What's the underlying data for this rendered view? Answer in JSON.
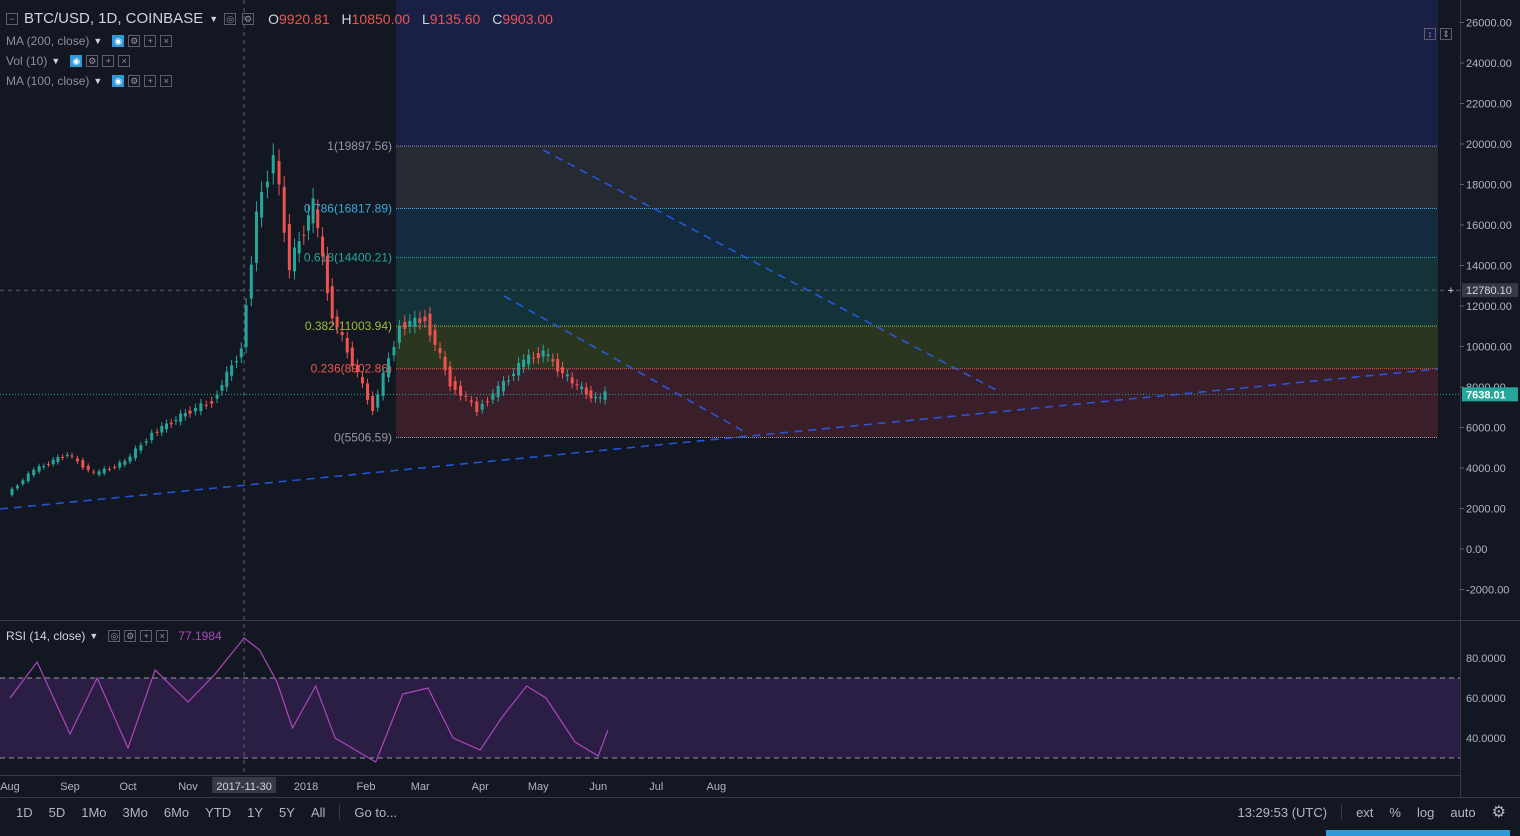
{
  "header": {
    "symbol_title": "BTC/USD, 1D, COINBASE",
    "o_label": "O",
    "o_value": "9920.81",
    "h_label": "H",
    "h_value": "10850.00",
    "l_label": "L",
    "l_value": "9135.60",
    "c_label": "C",
    "c_value": "9903.00"
  },
  "indicators": [
    {
      "label": "MA (200, close)"
    },
    {
      "label": "Vol (10)"
    },
    {
      "label": "MA (100, close)"
    }
  ],
  "rsi_panel": {
    "label": "RSI (14, close)",
    "value": "77.1984"
  },
  "price_axis": {
    "ticks": [
      "26000.00",
      "24000.00",
      "22000.00",
      "20000.00",
      "18000.00",
      "16000.00",
      "14000.00",
      "12000.00",
      "10000.00",
      "8000.00",
      "6000.00",
      "4000.00",
      "2000.00",
      "0.00",
      "-2000.00"
    ],
    "crosshair_price": "12780.10",
    "last_price": "7638.01"
  },
  "rsi_axis": {
    "ticks": [
      "80.0000",
      "60.0000",
      "40.0000"
    ]
  },
  "time_axis": {
    "labels": [
      "Aug",
      "Sep",
      "Oct",
      "Nov",
      "2018",
      "Feb",
      "Mar",
      "Apr",
      "May",
      "Jun",
      "Jul",
      "Aug"
    ],
    "crosshair_date": "2017-11-30"
  },
  "fib_levels": [
    {
      "ratio": "1",
      "price": "19897.56",
      "label": "1(19897.56)",
      "color": "#9598a1"
    },
    {
      "ratio": "0.786",
      "price": "16817.89",
      "label": "0.786(16817.89)",
      "color": "#3ea8d8"
    },
    {
      "ratio": "0.618",
      "price": "14400.21",
      "label": "0.618(14400.21)",
      "color": "#26a69a"
    },
    {
      "ratio": "0.382",
      "price": "11003.94",
      "label": "0.382(11003.94)",
      "color": "#9bbd3b"
    },
    {
      "ratio": "0.236",
      "price": "8902.86",
      "label": "0.236(8902.86)",
      "color": "#ef5350"
    },
    {
      "ratio": "0",
      "price": "5506.59",
      "label": "0(5506.59)",
      "color": "#9598a1"
    }
  ],
  "toolbar": {
    "ranges": [
      "1D",
      "5D",
      "1Mo",
      "3Mo",
      "6Mo",
      "YTD",
      "1Y",
      "5Y",
      "All"
    ],
    "goto": "Go to...",
    "clock": "13:29:53 (UTC)",
    "ext": "ext",
    "percent": "%",
    "log": "log",
    "auto": "auto"
  },
  "colors": {
    "up": "#26a69a",
    "down": "#ef5350",
    "rsi": "#ab47bc",
    "trend": "#2962ff"
  },
  "chart_data": {
    "type": "line",
    "title": "BTC/USD, 1D, COINBASE",
    "xlabel": "",
    "ylabel": "",
    "ylim": [
      -2000,
      26000
    ],
    "x": [
      "2017-08-01",
      "2017-08-15",
      "2017-09-01",
      "2017-09-15",
      "2017-10-01",
      "2017-10-15",
      "2017-11-01",
      "2017-11-15",
      "2017-11-30",
      "2017-12-08",
      "2017-12-17",
      "2017-12-25",
      "2018-01-06",
      "2018-01-16",
      "2018-02-06",
      "2018-02-20",
      "2018-03-05",
      "2018-03-18",
      "2018-04-01",
      "2018-04-12",
      "2018-04-25",
      "2018-05-05",
      "2018-05-20",
      "2018-06-01",
      "2018-06-06"
    ],
    "series": [
      {
        "values": [
          2700,
          3900,
          4700,
          3700,
          4300,
          5700,
          6700,
          7300,
          9900,
          16500,
          19500,
          14000,
          17000,
          11500,
          6900,
          11000,
          11400,
          8200,
          6900,
          7900,
          9300,
          9700,
          8200,
          7400,
          7638
        ]
      }
    ],
    "rsi": {
      "ylim": [
        20,
        95
      ],
      "ticks": [
        80,
        60,
        40
      ],
      "levels": [
        70,
        30
      ],
      "values": [
        60,
        78,
        42,
        70,
        35,
        74,
        58,
        72,
        90,
        84,
        68,
        45,
        66,
        40,
        28,
        62,
        65,
        40,
        34,
        50,
        66,
        60,
        38,
        31,
        44
      ]
    }
  }
}
